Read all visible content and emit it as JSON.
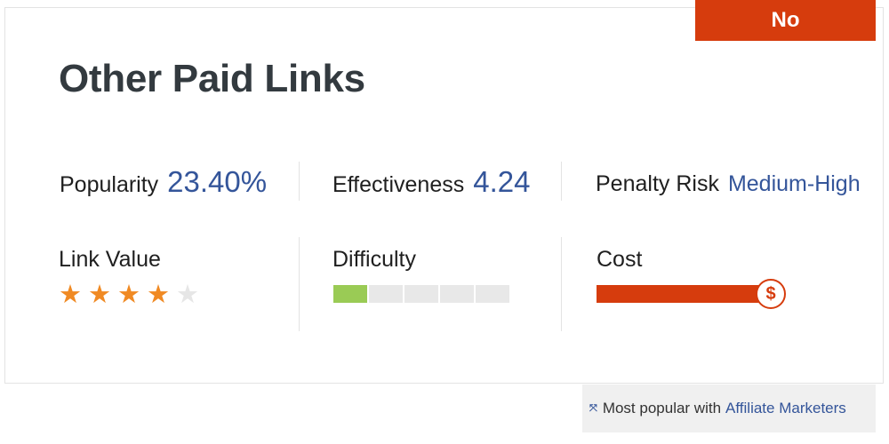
{
  "badge": "No",
  "title": "Other Paid Links",
  "stats": {
    "popularity": {
      "label": "Popularity",
      "value": "23.40%"
    },
    "effectiveness": {
      "label": "Effectiveness",
      "value": "4.24"
    },
    "penalty": {
      "label": "Penalty Risk",
      "value": "Medium-High"
    }
  },
  "ratings": {
    "link_value": {
      "label": "Link Value",
      "stars": 4,
      "max_stars": 5
    },
    "difficulty": {
      "label": "Difficulty",
      "level": 1,
      "max_level": 5
    },
    "cost": {
      "label": "Cost",
      "level_fraction": 0.95,
      "icon": "dollar-icon",
      "icon_glyph": "$"
    }
  },
  "footer": {
    "prefix": "Most popular with",
    "link": "Affiliate Marketers",
    "icon": "x-icon",
    "icon_glyph": "⤧"
  },
  "colors": {
    "accent_red": "#d63c0d",
    "value_blue": "#34559a",
    "star_filled": "#f08a24",
    "star_empty": "#e6e6e6",
    "difficulty_filled": "#9acb55",
    "difficulty_empty": "#e8e8e8"
  }
}
